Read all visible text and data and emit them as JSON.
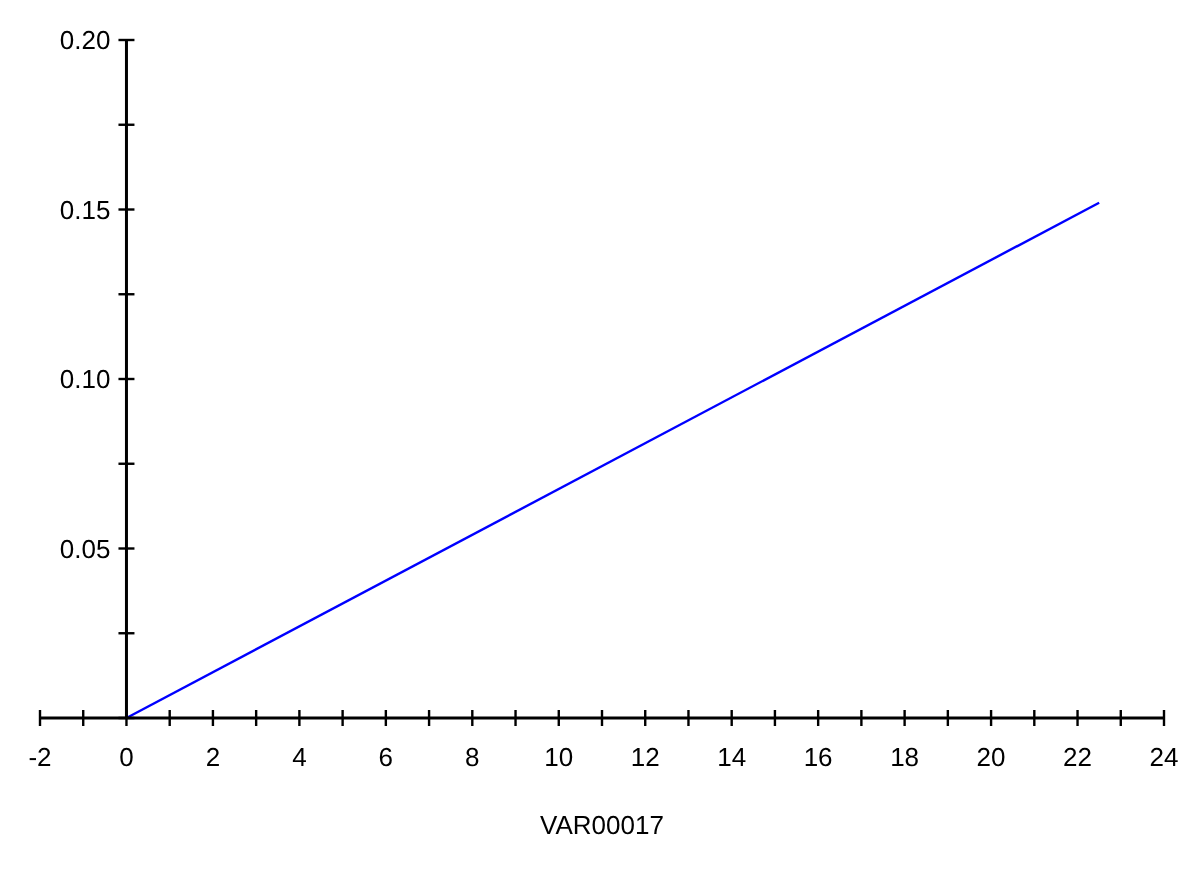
{
  "chart_data": {
    "type": "line",
    "xlabel": "VAR00017",
    "series": [
      {
        "color": "#0000ff",
        "x": [
          0,
          22.5
        ],
        "values": [
          0,
          0.152
        ]
      }
    ],
    "xlim": [
      -2,
      24
    ],
    "ylim": [
      0,
      0.2
    ],
    "xticks": [
      -2,
      {
        "value": -1,
        "label": null
      },
      0,
      {
        "value": 1,
        "label": null
      },
      2,
      {
        "value": 3,
        "label": null
      },
      4,
      {
        "value": 5,
        "label": null
      },
      6,
      {
        "value": 7,
        "label": null
      },
      8,
      {
        "value": 9,
        "label": null
      },
      10,
      {
        "value": 11,
        "label": null
      },
      12,
      {
        "value": 13,
        "label": null
      },
      14,
      {
        "value": 15,
        "label": null
      },
      16,
      {
        "value": 17,
        "label": null
      },
      18,
      {
        "value": 19,
        "label": null
      },
      20,
      {
        "value": 21,
        "label": null
      },
      22,
      {
        "value": 23,
        "label": null
      },
      24
    ],
    "yticks": [
      {
        "value": 0,
        "label": null
      },
      {
        "value": 0.025,
        "label": null
      },
      {
        "value": 0.05,
        "label": "0.05"
      },
      {
        "value": 0.075,
        "label": null
      },
      {
        "value": 0.1,
        "label": "0.10"
      },
      {
        "value": 0.125,
        "label": null
      },
      {
        "value": 0.15,
        "label": "0.15"
      },
      {
        "value": 0.175,
        "label": null
      },
      {
        "value": 0.2,
        "label": "0.20"
      }
    ],
    "grid": false,
    "marker": "none",
    "line_style": "solid"
  }
}
